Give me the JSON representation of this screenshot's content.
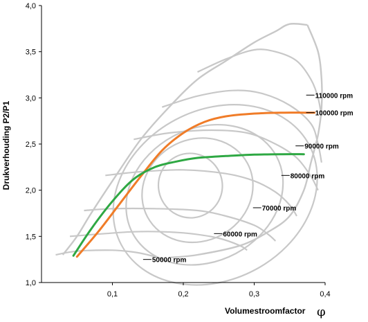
{
  "chart_data": {
    "type": "line",
    "title": "",
    "xlabel": "Volumestroomfactor",
    "xlabel_symbol": "φ",
    "ylabel": "Drukverhouding P2/P1",
    "xlim": [
      0.0,
      0.4
    ],
    "ylim": [
      1.0,
      4.0
    ],
    "x_ticks": [
      "0,1",
      "0,2",
      "0,3",
      "0,4"
    ],
    "y_ticks": [
      "1,0",
      "1,5",
      "2,0",
      "2,5",
      "3,0",
      "3,5",
      "4,0"
    ],
    "grid": false,
    "colors": {
      "speed_lines": "#c8c8c8",
      "orange_curve": "#f07c28",
      "green_curve": "#2ea843"
    },
    "speed_lines": [
      {
        "label": "50000 rpm",
        "label_at": [
          0.155,
          1.25
        ],
        "points": [
          [
            0.02,
            1.3
          ],
          [
            0.05,
            1.34
          ],
          [
            0.1,
            1.35
          ],
          [
            0.13,
            1.33
          ],
          [
            0.15,
            1.3
          ],
          [
            0.17,
            1.26
          ]
        ]
      },
      {
        "label": "60000 rpm",
        "label_at": [
          0.255,
          1.53
        ],
        "points": [
          [
            0.04,
            1.5
          ],
          [
            0.09,
            1.53
          ],
          [
            0.13,
            1.55
          ],
          [
            0.17,
            1.55
          ],
          [
            0.21,
            1.53
          ],
          [
            0.25,
            1.48
          ],
          [
            0.28,
            1.4
          ],
          [
            0.29,
            1.35
          ]
        ]
      },
      {
        "label": "70000 rpm",
        "label_at": [
          0.31,
          1.81
        ],
        "points": [
          [
            0.06,
            1.78
          ],
          [
            0.1,
            1.8
          ],
          [
            0.16,
            1.8
          ],
          [
            0.22,
            1.78
          ],
          [
            0.26,
            1.72
          ],
          [
            0.3,
            1.62
          ],
          [
            0.32,
            1.52
          ],
          [
            0.33,
            1.45
          ]
        ]
      },
      {
        "label": "80000 rpm",
        "label_at": [
          0.35,
          2.16
        ],
        "points": [
          [
            0.09,
            2.16
          ],
          [
            0.14,
            2.2
          ],
          [
            0.2,
            2.22
          ],
          [
            0.26,
            2.18
          ],
          [
            0.3,
            2.1
          ],
          [
            0.33,
            1.98
          ],
          [
            0.35,
            1.84
          ],
          [
            0.36,
            1.72
          ]
        ]
      },
      {
        "label": "90000 rpm",
        "label_at": [
          0.37,
          2.48
        ],
        "points": [
          [
            0.13,
            2.55
          ],
          [
            0.18,
            2.62
          ],
          [
            0.24,
            2.65
          ],
          [
            0.29,
            2.62
          ],
          [
            0.33,
            2.5
          ],
          [
            0.36,
            2.35
          ],
          [
            0.38,
            2.15
          ],
          [
            0.39,
            2.0
          ]
        ]
      },
      {
        "label": "100000 rpm",
        "label_at": [
          0.385,
          2.84
        ],
        "points": [
          [
            0.17,
            2.9
          ],
          [
            0.22,
            3.02
          ],
          [
            0.27,
            3.08
          ],
          [
            0.31,
            3.05
          ],
          [
            0.35,
            2.92
          ],
          [
            0.38,
            2.72
          ],
          [
            0.39,
            2.5
          ],
          [
            0.395,
            2.3
          ]
        ]
      },
      {
        "label": "110000 rpm",
        "label_at": [
          0.385,
          3.03
        ],
        "points": [
          [
            0.22,
            3.28
          ],
          [
            0.26,
            3.42
          ],
          [
            0.3,
            3.52
          ],
          [
            0.33,
            3.5
          ],
          [
            0.36,
            3.4
          ],
          [
            0.38,
            3.2
          ],
          [
            0.39,
            3.0
          ],
          [
            0.395,
            2.8
          ]
        ]
      }
    ],
    "surge_line_points": [
      [
        0.03,
        1.3
      ],
      [
        0.05,
        1.5
      ],
      [
        0.07,
        1.75
      ],
      [
        0.1,
        2.1
      ],
      [
        0.14,
        2.55
      ],
      [
        0.18,
        2.9
      ],
      [
        0.22,
        3.2
      ],
      [
        0.26,
        3.4
      ],
      [
        0.3,
        3.6
      ],
      [
        0.33,
        3.72
      ],
      [
        0.35,
        3.8
      ],
      [
        0.375,
        3.79
      ]
    ],
    "choke_line_points": [
      [
        0.375,
        3.79
      ],
      [
        0.39,
        3.5
      ],
      [
        0.395,
        3.2
      ],
      [
        0.395,
        2.9
      ],
      [
        0.39,
        2.6
      ],
      [
        0.38,
        2.3
      ],
      [
        0.37,
        2.0
      ],
      [
        0.35,
        1.72
      ],
      [
        0.32,
        1.55
      ],
      [
        0.28,
        1.4
      ],
      [
        0.22,
        1.3
      ],
      [
        0.18,
        1.27
      ]
    ],
    "efficiency_islands": [
      {
        "cx": 0.21,
        "cy": 2.05,
        "rx": 0.045,
        "ry": 0.35
      },
      {
        "cx": 0.22,
        "cy": 2.0,
        "rx": 0.08,
        "ry": 0.55
      },
      {
        "cx": 0.23,
        "cy": 1.95,
        "rx": 0.115,
        "ry": 0.72
      },
      {
        "cx": 0.245,
        "cy": 1.95,
        "rx": 0.15,
        "ry": 0.92
      }
    ],
    "series": [
      {
        "name": "",
        "color": "#f07c28",
        "points": [
          [
            0.05,
            1.28
          ],
          [
            0.08,
            1.55
          ],
          [
            0.11,
            1.85
          ],
          [
            0.14,
            2.15
          ],
          [
            0.17,
            2.43
          ],
          [
            0.2,
            2.62
          ],
          [
            0.23,
            2.74
          ],
          [
            0.26,
            2.8
          ],
          [
            0.3,
            2.83
          ],
          [
            0.34,
            2.84
          ],
          [
            0.37,
            2.84
          ],
          [
            0.385,
            2.84
          ]
        ]
      },
      {
        "name": "",
        "color": "#2ea843",
        "points": [
          [
            0.045,
            1.29
          ],
          [
            0.07,
            1.58
          ],
          [
            0.1,
            1.88
          ],
          [
            0.13,
            2.12
          ],
          [
            0.16,
            2.25
          ],
          [
            0.19,
            2.31
          ],
          [
            0.22,
            2.35
          ],
          [
            0.26,
            2.37
          ],
          [
            0.3,
            2.385
          ],
          [
            0.34,
            2.39
          ],
          [
            0.37,
            2.39
          ]
        ]
      }
    ]
  }
}
